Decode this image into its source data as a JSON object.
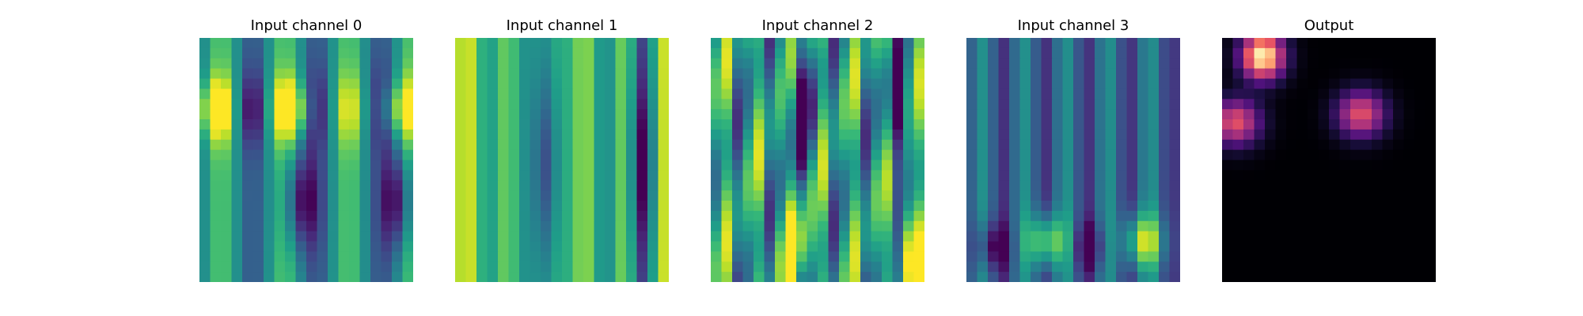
{
  "chart_data": [
    {
      "type": "heatmap",
      "title": "Input channel 0",
      "colormap": "viridis",
      "grid": false,
      "axes": "off"
    },
    {
      "type": "heatmap",
      "title": "Input channel 1",
      "colormap": "viridis",
      "grid": false,
      "axes": "off"
    },
    {
      "type": "heatmap",
      "title": "Input channel 2",
      "colormap": "viridis",
      "grid": false,
      "axes": "off"
    },
    {
      "type": "heatmap",
      "title": "Input channel 3",
      "colormap": "viridis",
      "grid": false,
      "axes": "off"
    },
    {
      "type": "heatmap",
      "title": "Output",
      "colormap": "magma",
      "grid": false,
      "axes": "off"
    }
  ]
}
